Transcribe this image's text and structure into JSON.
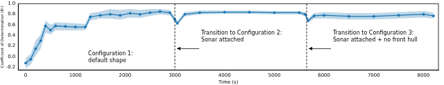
{
  "chart_data": {
    "type": "line",
    "x_label": "Time (s)",
    "y_label": "Coefficient of Determination (R²)",
    "x": [
      0,
      100,
      200,
      300,
      400,
      500,
      600,
      800,
      1000,
      1200,
      1300,
      1500,
      1700,
      1900,
      2100,
      2300,
      2500,
      2700,
      2900,
      3000,
      3050,
      3200,
      3500,
      4000,
      4500,
      5000,
      5500,
      5620,
      5680,
      5800,
      6000,
      6500,
      7000,
      7500,
      8000,
      8200
    ],
    "series": [
      {
        "color": "#1f77b4",
        "marker": "o",
        "values": [
          -0.12,
          -0.05,
          0.15,
          0.3,
          0.58,
          0.5,
          0.58,
          0.57,
          0.56,
          0.56,
          0.75,
          0.78,
          0.8,
          0.78,
          0.82,
          0.8,
          0.83,
          0.85,
          0.83,
          0.7,
          0.63,
          0.8,
          0.83,
          0.84,
          0.84,
          0.83,
          0.83,
          0.8,
          0.68,
          0.77,
          0.78,
          0.76,
          0.76,
          0.78,
          0.8,
          0.77
        ],
        "lower": [
          -0.22,
          -0.15,
          0.02,
          0.15,
          0.45,
          0.42,
          0.5,
          0.5,
          0.5,
          0.5,
          0.68,
          0.72,
          0.72,
          0.7,
          0.74,
          0.73,
          0.77,
          0.8,
          0.78,
          0.66,
          0.6,
          0.76,
          0.8,
          0.81,
          0.81,
          0.8,
          0.8,
          0.76,
          0.64,
          0.72,
          0.72,
          0.7,
          0.7,
          0.72,
          0.74,
          0.72
        ],
        "upper": [
          -0.03,
          0.05,
          0.3,
          0.42,
          0.68,
          0.6,
          0.65,
          0.64,
          0.63,
          0.62,
          0.82,
          0.85,
          0.9,
          0.88,
          0.9,
          0.88,
          0.9,
          0.9,
          0.88,
          0.74,
          0.67,
          0.84,
          0.87,
          0.87,
          0.87,
          0.86,
          0.86,
          0.84,
          0.72,
          0.82,
          0.84,
          0.82,
          0.82,
          0.84,
          0.86,
          0.83
        ]
      }
    ],
    "xlim": [
      -150,
      8300
    ],
    "xticks": [
      0,
      1000,
      2000,
      3000,
      4000,
      5000,
      6000,
      7000,
      8000
    ],
    "ylim": [
      -0.25,
      1.0
    ],
    "yticks": [
      -0.2,
      {
        "value": 0,
        "label": "0.0"
      },
      0.2,
      0.4,
      0.6,
      0.8,
      {
        "value": 1,
        "label": "1.0"
      }
    ],
    "vlines": [
      3000,
      5650
    ],
    "annotations": [
      [
        "Configuration 1:",
        "default shape"
      ],
      [
        "Transition to Configuration 2:",
        "Sonar attached"
      ],
      [
        "Transition to Configuration 3:",
        "Sonar attached + no front hull"
      ]
    ],
    "grid": false
  }
}
